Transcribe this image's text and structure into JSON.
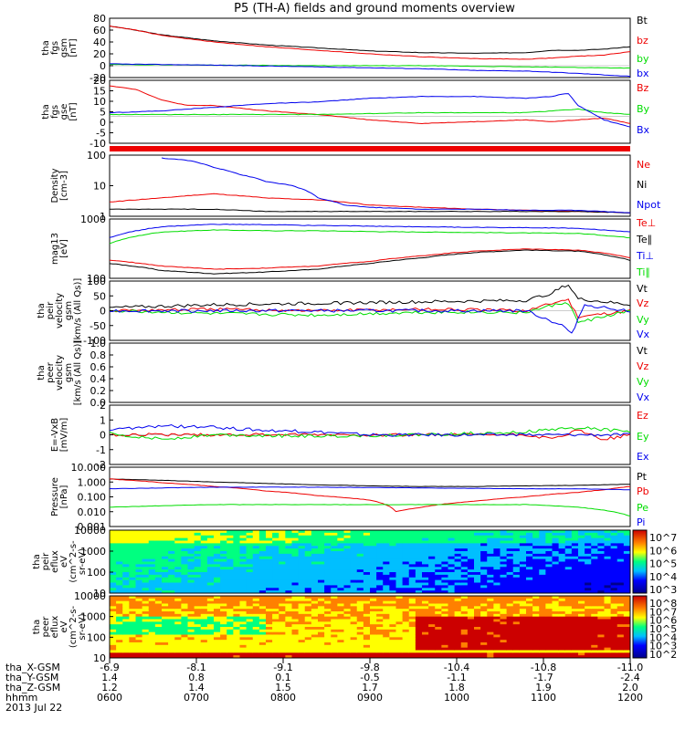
{
  "title": "P5 (TH-A) fields and ground moments overview",
  "colors": {
    "black": "#000000",
    "red": "#ee0000",
    "green": "#00dd00",
    "blue": "#0000ee"
  },
  "chart_data": [
    {
      "id": "fgs_gsm",
      "type": "line",
      "ylabel": [
        "tha",
        "fgs",
        "gsm",
        "[nT]"
      ],
      "ylim": [
        -20,
        80
      ],
      "yticks": [
        "80",
        "60",
        "40",
        "20",
        "0",
        "-20"
      ],
      "series": [
        {
          "name": "Bt",
          "color": "black",
          "x": [
            0,
            0.05,
            0.1,
            0.2,
            0.3,
            0.4,
            0.5,
            0.6,
            0.7,
            0.8,
            0.85,
            0.9,
            0.95,
            1
          ],
          "values": [
            67,
            60,
            52,
            42,
            35,
            30,
            25,
            22,
            21,
            22,
            26,
            26,
            28,
            32
          ]
        },
        {
          "name": "bz",
          "color": "red",
          "x": [
            0,
            0.05,
            0.1,
            0.2,
            0.3,
            0.4,
            0.5,
            0.6,
            0.7,
            0.8,
            0.85,
            0.9,
            0.95,
            1
          ],
          "values": [
            67,
            60,
            51,
            40,
            32,
            26,
            20,
            15,
            12,
            11,
            13,
            16,
            18,
            24
          ]
        },
        {
          "name": "by",
          "color": "green",
          "x": [
            0,
            0.2,
            0.4,
            0.6,
            0.8,
            0.9,
            1
          ],
          "values": [
            2,
            1,
            0,
            0,
            -2,
            -3,
            -4
          ]
        },
        {
          "name": "bx",
          "color": "blue",
          "x": [
            0,
            0.2,
            0.4,
            0.6,
            0.7,
            0.8,
            0.9,
            1
          ],
          "values": [
            3,
            1,
            -2,
            -5,
            -8,
            -9,
            -13,
            -18
          ]
        }
      ]
    },
    {
      "id": "fgs_gse",
      "type": "line",
      "ylabel": [
        "tha",
        "fgs",
        "gse",
        "[nT]"
      ],
      "ylim": [
        -15,
        20
      ],
      "yticks": [
        "20",
        "15",
        "10",
        "5",
        "0",
        "-5",
        "-10"
      ],
      "series": [
        {
          "name": "Bz",
          "color": "red",
          "x": [
            0,
            0.05,
            0.1,
            0.15,
            0.2,
            0.3,
            0.4,
            0.5,
            0.6,
            0.7,
            0.8,
            0.85,
            0.9,
            0.95,
            1
          ],
          "values": [
            17,
            15,
            9,
            6,
            6,
            3,
            1,
            -2,
            -4,
            -3,
            -2,
            -3,
            -2,
            -1,
            -4
          ]
        },
        {
          "name": "By",
          "color": "green",
          "x": [
            0,
            0.2,
            0.4,
            0.6,
            0.7,
            0.8,
            0.85,
            0.9,
            0.95,
            1
          ],
          "values": [
            1,
            1,
            1,
            2,
            2,
            2,
            3,
            4,
            2,
            1
          ]
        },
        {
          "name": "Bx",
          "color": "blue",
          "x": [
            0,
            0.1,
            0.2,
            0.3,
            0.4,
            0.5,
            0.6,
            0.7,
            0.8,
            0.85,
            0.88,
            0.9,
            0.95,
            1
          ],
          "values": [
            2,
            3,
            5,
            7,
            8,
            10,
            11,
            11,
            10,
            11,
            13,
            6,
            -2,
            -6
          ]
        }
      ]
    },
    {
      "id": "quality_bar",
      "type": "bar",
      "ylabel": [],
      "color": "red"
    },
    {
      "id": "density",
      "type": "line",
      "scale": "log",
      "ylabel": [
        "Density",
        "[cm-3]"
      ],
      "ylim": [
        0.5,
        200
      ],
      "yticks": [
        "100",
        "10",
        "1"
      ],
      "series": [
        {
          "name": "Ne",
          "color": "red",
          "x": [
            0,
            0.1,
            0.2,
            0.3,
            0.4,
            0.5,
            0.6,
            0.7,
            0.8,
            0.9,
            1
          ],
          "values": [
            2,
            3,
            4.5,
            3,
            2.5,
            1.5,
            1.2,
            1,
            0.9,
            0.8,
            0.7
          ]
        },
        {
          "name": "Ni",
          "color": "black",
          "x": [
            0,
            0.1,
            0.2,
            0.3,
            0.4,
            0.5,
            0.6,
            0.7,
            0.8,
            0.9,
            1
          ],
          "values": [
            1,
            1,
            1,
            0.8,
            0.8,
            0.8,
            0.8,
            0.8,
            0.8,
            0.8,
            0.7
          ]
        },
        {
          "name": "Npot",
          "color": "blue",
          "x": [
            0.1,
            0.15,
            0.2,
            0.25,
            0.3,
            0.35,
            0.4,
            0.45,
            0.5,
            0.6,
            0.7,
            0.8,
            0.9,
            1
          ],
          "values": [
            150,
            120,
            60,
            30,
            15,
            10,
            3,
            1.5,
            1.2,
            1,
            1,
            0.9,
            0.9,
            0.7
          ]
        }
      ]
    },
    {
      "id": "temperature",
      "type": "line",
      "scale": "log",
      "ylabel": [
        "mag13",
        "[eV]"
      ],
      "ylim": [
        40,
        8000
      ],
      "yticks": [
        "1000",
        "100"
      ],
      "series": [
        {
          "name": "Te⊥",
          "color": "red",
          "x": [
            0,
            0.1,
            0.2,
            0.3,
            0.4,
            0.5,
            0.6,
            0.7,
            0.8,
            0.9,
            1
          ],
          "values": [
            200,
            120,
            90,
            100,
            120,
            180,
            300,
            450,
            550,
            500,
            250
          ]
        },
        {
          "name": "Te∥",
          "color": "black",
          "x": [
            0,
            0.1,
            0.2,
            0.3,
            0.4,
            0.5,
            0.6,
            0.7,
            0.8,
            0.9,
            1
          ],
          "values": [
            150,
            80,
            60,
            70,
            90,
            150,
            250,
            400,
            500,
            450,
            200
          ]
        },
        {
          "name": "Ti⊥",
          "color": "blue",
          "x": [
            0,
            0.1,
            0.2,
            0.3,
            0.4,
            0.5,
            0.6,
            0.7,
            0.8,
            0.9,
            1
          ],
          "values": [
            1500,
            4000,
            5000,
            4800,
            4500,
            4200,
            4000,
            3800,
            3700,
            3500,
            2500
          ]
        },
        {
          "name": "Ti∥",
          "color": "green",
          "x": [
            0,
            0.1,
            0.2,
            0.3,
            0.4,
            0.5,
            0.6,
            0.7,
            0.8,
            0.9,
            1
          ],
          "values": [
            900,
            2500,
            3000,
            2800,
            2800,
            2600,
            2500,
            2400,
            2300,
            2200,
            1500
          ]
        }
      ]
    },
    {
      "id": "peir_velocity",
      "type": "line",
      "ylabel": [
        "tha",
        "peir",
        "velocity",
        "gsm",
        "[km/s (All Qs)]"
      ],
      "ylim": [
        -100,
        100
      ],
      "yticks": [
        "100",
        "50",
        "0",
        "-50",
        "-100"
      ],
      "series": [
        {
          "name": "Vt",
          "color": "black",
          "x": [
            0,
            0.2,
            0.4,
            0.6,
            0.8,
            0.85,
            0.88,
            0.9,
            0.95,
            1
          ],
          "values": [
            10,
            20,
            25,
            30,
            35,
            60,
            90,
            40,
            30,
            20
          ]
        },
        {
          "name": "Vz",
          "color": "red",
          "x": [
            0,
            0.2,
            0.4,
            0.6,
            0.8,
            0.88,
            0.9,
            1
          ],
          "values": [
            0,
            5,
            0,
            5,
            0,
            40,
            -20,
            0
          ]
        },
        {
          "name": "Vy",
          "color": "green",
          "x": [
            0,
            0.2,
            0.4,
            0.6,
            0.8,
            0.88,
            0.9,
            1
          ],
          "values": [
            0,
            -10,
            -15,
            -5,
            -5,
            30,
            -40,
            0
          ]
        },
        {
          "name": "Vx",
          "color": "blue",
          "x": [
            0,
            0.2,
            0.4,
            0.6,
            0.8,
            0.87,
            0.89,
            0.91,
            1
          ],
          "values": [
            0,
            0,
            0,
            0,
            0,
            -50,
            -80,
            20,
            0
          ]
        }
      ]
    },
    {
      "id": "peer_velocity",
      "type": "line",
      "ylabel": [
        "tha",
        "peer",
        "velocity",
        "gsm",
        "[km/s (All Qs)]"
      ],
      "ylim": [
        0,
        1
      ],
      "yticks": [
        "1.0",
        "0.8",
        "0.6",
        "0.4",
        "0.2",
        "0.0"
      ],
      "series": [
        {
          "name": "Vt",
          "color": "black",
          "x": [],
          "values": []
        },
        {
          "name": "Vz",
          "color": "red",
          "x": [],
          "values": []
        },
        {
          "name": "Vy",
          "color": "green",
          "x": [],
          "values": []
        },
        {
          "name": "Vx",
          "color": "blue",
          "x": [],
          "values": []
        }
      ]
    },
    {
      "id": "efield",
      "type": "line",
      "ylabel": [
        "E=-VxB",
        "[mV/m]"
      ],
      "ylim": [
        -2,
        2
      ],
      "yticks": [
        "2",
        "1",
        "0",
        "-1",
        "-2"
      ],
      "series": [
        {
          "name": "Ez",
          "color": "red",
          "x": [
            0,
            0.2,
            0.4,
            0.6,
            0.8,
            0.85,
            0.9,
            0.95,
            1
          ],
          "values": [
            0,
            0,
            0,
            0,
            0,
            -0.3,
            0.3,
            -0.3,
            0
          ]
        },
        {
          "name": "Ey",
          "color": "green",
          "x": [
            0,
            0.1,
            0.2,
            0.4,
            0.6,
            0.8,
            0.9,
            1
          ],
          "values": [
            0.1,
            -0.3,
            0,
            -0.1,
            0,
            0.2,
            0.5,
            0.2
          ]
        },
        {
          "name": "Ex",
          "color": "blue",
          "x": [
            0,
            0.1,
            0.2,
            0.3,
            0.4,
            0.5,
            0.6,
            0.8,
            1
          ],
          "values": [
            0.3,
            0.6,
            0.5,
            0.3,
            0.2,
            0,
            0,
            0,
            0
          ]
        }
      ]
    },
    {
      "id": "pressure",
      "type": "line",
      "scale": "log",
      "ylabel": [
        "Pressure",
        "[nPa]"
      ],
      "ylim": [
        0.001,
        10
      ],
      "yticks": [
        "10.000",
        "1.000",
        "0.100",
        "0.010",
        "0.001"
      ],
      "series": [
        {
          "name": "Pt",
          "color": "black",
          "x": [
            0,
            0.1,
            0.2,
            0.3,
            0.4,
            0.5,
            0.6,
            0.7,
            0.8,
            0.9,
            1
          ],
          "values": [
            1.6,
            1.3,
            1.0,
            0.8,
            0.65,
            0.55,
            0.5,
            0.5,
            0.55,
            0.6,
            0.7
          ]
        },
        {
          "name": "Pb",
          "color": "red",
          "x": [
            0,
            0.1,
            0.2,
            0.3,
            0.4,
            0.5,
            0.55,
            0.6,
            0.7,
            0.8,
            0.85,
            0.9,
            0.95,
            1
          ],
          "values": [
            1.6,
            0.9,
            0.5,
            0.25,
            0.12,
            0.06,
            0.01,
            0.02,
            0.05,
            0.1,
            0.15,
            0.2,
            0.3,
            0.5
          ]
        },
        {
          "name": "Pe",
          "color": "green",
          "x": [
            0,
            0.2,
            0.4,
            0.6,
            0.8,
            0.9,
            1
          ],
          "values": [
            0.02,
            0.03,
            0.03,
            0.03,
            0.03,
            0.02,
            0.005
          ]
        },
        {
          "name": "Pi",
          "color": "blue",
          "x": [
            0,
            0.2,
            0.4,
            0.6,
            0.8,
            0.9,
            1
          ],
          "values": [
            0.35,
            0.45,
            0.45,
            0.4,
            0.35,
            0.35,
            0.3
          ]
        }
      ]
    },
    {
      "id": "peir_spectrogram",
      "type": "heatmap",
      "scale": "log",
      "ylabel": [
        "tha",
        "peir",
        "eflux",
        "eV",
        "(cm^2-s-",
        "sr-eV)"
      ],
      "ylim": [
        7,
        20000
      ],
      "yticks": [
        "10000",
        "1000",
        "100",
        "10"
      ],
      "colorbar_ticks": [
        "10^7",
        "10^6",
        "10^5",
        "10^4",
        "10^3"
      ]
    },
    {
      "id": "peer_spectrogram",
      "type": "heatmap",
      "scale": "log",
      "ylabel": [
        "tha",
        "peer",
        "eflux",
        "eV",
        "(cm^2-s-",
        "sr-eV)"
      ],
      "ylim": [
        7,
        20000
      ],
      "yticks": [
        "10000",
        "1000",
        "100",
        "10"
      ],
      "colorbar_ticks": [
        "10^8",
        "10^7",
        "10^6",
        "10^5",
        "10^4",
        "10^3",
        "10^2"
      ]
    }
  ],
  "footer": {
    "rows": [
      {
        "label": "tha_X-GSM",
        "values": [
          "-6.9",
          "-8.1",
          "-9.1",
          "-9.8",
          "-10.4",
          "-10.8",
          "-11.0"
        ]
      },
      {
        "label": "tha_Y-GSM",
        "values": [
          "1.4",
          "0.8",
          "0.1",
          "-0.5",
          "-1.1",
          "-1.7",
          "-2.4"
        ]
      },
      {
        "label": "tha_Z-GSM",
        "values": [
          "1.2",
          "1.4",
          "1.5",
          "1.7",
          "1.8",
          "1.9",
          "2.0"
        ]
      },
      {
        "label": "hhmm",
        "values": [
          "0600",
          "0700",
          "0800",
          "0900",
          "1000",
          "1100",
          "1200"
        ]
      }
    ],
    "date": "2013 Jul 22"
  }
}
